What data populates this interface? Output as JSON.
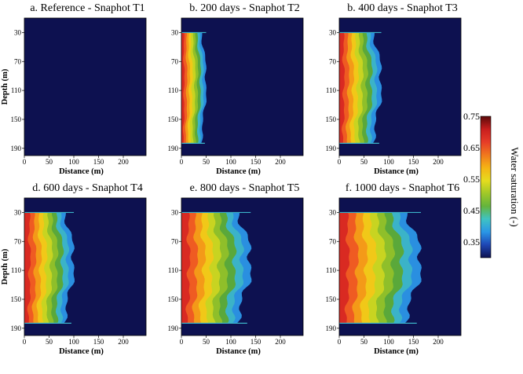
{
  "chart_data": {
    "type": "heatmap",
    "x_unit": "m",
    "y_unit": "m",
    "xlabel": "Distance (m)",
    "ylabel": "Depth (m)",
    "xlim": [
      0,
      246
    ],
    "ylim": [
      200,
      10
    ],
    "x_ticks": [
      "0",
      "50",
      "100",
      "150",
      "200"
    ],
    "y_ticks": [
      "30",
      "70",
      "110",
      "150",
      "190"
    ],
    "background_saturation": 0.3,
    "plume_top_depth": 30,
    "plume_bottom_depth": 183,
    "panels": [
      {
        "title": "a. Reference - Snaphot T1",
        "front_distance_m": 0
      },
      {
        "title": "b. 200 days - Snaphot T2",
        "front_distance_m": 50
      },
      {
        "title": "b. 400 days - Snaphot T3",
        "front_distance_m": 85
      },
      {
        "title": "d. 600 days - Snaphot T4",
        "front_distance_m": 100
      },
      {
        "title": "e. 800 days - Snaphot T5",
        "front_distance_m": 140
      },
      {
        "title": "f. 1000 days - Snaphot T6",
        "front_distance_m": 165
      }
    ],
    "colorbar": {
      "label": "Water saturation (-)",
      "ticks": [
        "0.75",
        "0.65",
        "0.55",
        "0.45",
        "0.35"
      ],
      "range": [
        0.3,
        0.75
      ],
      "colors": [
        "#0d1150",
        "#1e46b4",
        "#2a96e6",
        "#3fc3c3",
        "#64b43c",
        "#a0c828",
        "#e6dc1e",
        "#f5b414",
        "#f0781e",
        "#e63c28",
        "#c81e1e",
        "#5a0a0a"
      ]
    }
  }
}
